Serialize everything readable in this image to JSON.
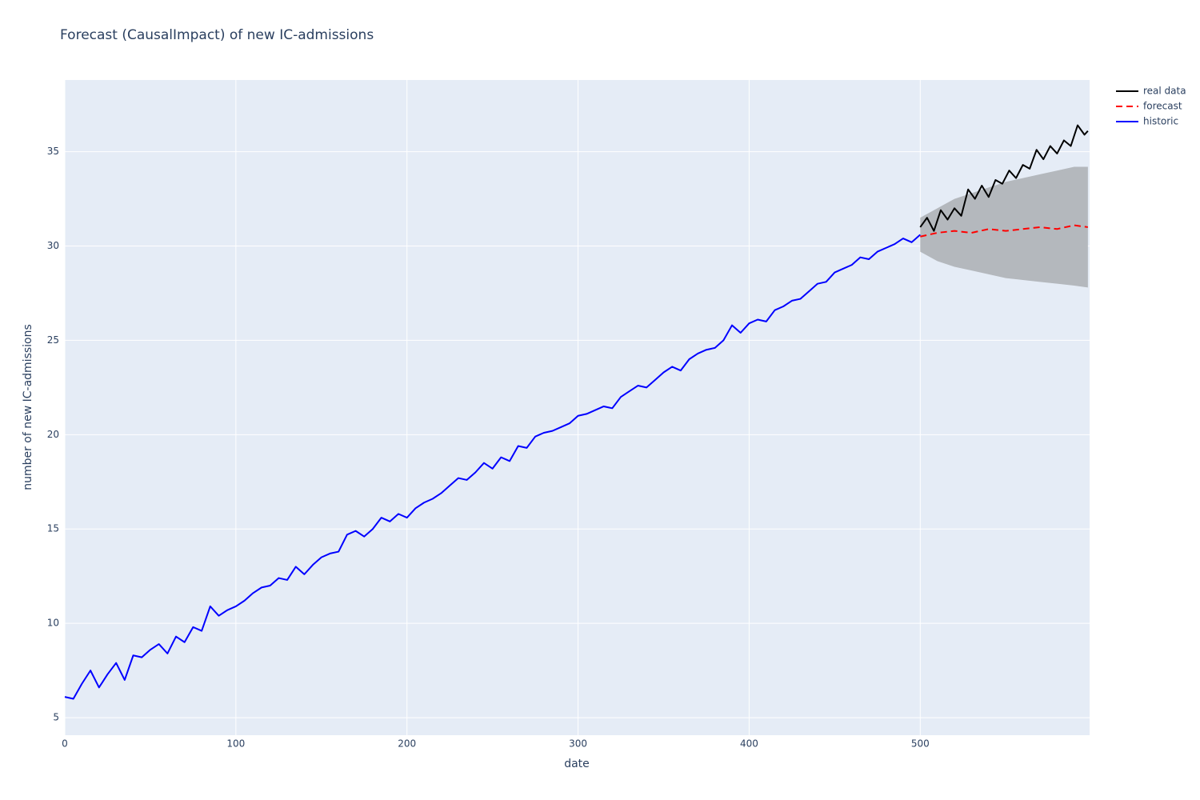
{
  "chart_data": {
    "type": "line",
    "title": "Forecast (CausalImpact) of new IC-admissions",
    "x_label": "date",
    "y_label": "number of new IC-admissions",
    "xlim": [
      0,
      599
    ],
    "ylim": [
      4.07,
      38.8
    ],
    "xticks": [
      0,
      100,
      200,
      300,
      400,
      500
    ],
    "yticks": [
      5,
      10,
      15,
      20,
      25,
      30,
      35
    ],
    "grid": true,
    "series": [
      {
        "name": "real data",
        "color": "#000000",
        "dash": "solid",
        "x": [
          500,
          504,
          508,
          512,
          516,
          520,
          524,
          528,
          532,
          536,
          540,
          544,
          548,
          552,
          556,
          560,
          564,
          568,
          572,
          576,
          580,
          584,
          588,
          592,
          596,
          598
        ],
        "values": [
          31.0,
          31.5,
          30.8,
          31.9,
          31.4,
          32.0,
          31.6,
          33.0,
          32.5,
          33.2,
          32.6,
          33.5,
          33.3,
          34.0,
          33.6,
          34.3,
          34.1,
          35.1,
          34.6,
          35.3,
          34.9,
          35.6,
          35.3,
          36.4,
          35.9,
          36.1
        ]
      },
      {
        "name": "forecast",
        "color": "#ff0000",
        "dash": "dash",
        "band_color": "#b4b8bd",
        "x": [
          500,
          510,
          520,
          530,
          540,
          550,
          560,
          570,
          580,
          590,
          598
        ],
        "values": [
          30.5,
          30.7,
          30.8,
          30.7,
          30.9,
          30.8,
          30.9,
          31.0,
          30.9,
          31.1,
          31.0
        ],
        "lower": [
          29.7,
          29.2,
          28.9,
          28.7,
          28.5,
          28.3,
          28.2,
          28.1,
          28.0,
          27.9,
          27.8
        ],
        "upper": [
          31.5,
          32.0,
          32.5,
          32.8,
          33.1,
          33.4,
          33.6,
          33.8,
          34.0,
          34.2,
          34.2
        ]
      },
      {
        "name": "historic",
        "color": "#0000ff",
        "dash": "solid",
        "x": [
          0,
          5,
          10,
          15,
          20,
          25,
          30,
          35,
          40,
          45,
          50,
          55,
          60,
          65,
          70,
          75,
          80,
          85,
          90,
          95,
          100,
          105,
          110,
          115,
          120,
          125,
          130,
          135,
          140,
          145,
          150,
          155,
          160,
          165,
          170,
          175,
          180,
          185,
          190,
          195,
          200,
          205,
          210,
          215,
          220,
          225,
          230,
          235,
          240,
          245,
          250,
          255,
          260,
          265,
          270,
          275,
          280,
          285,
          290,
          295,
          300,
          305,
          310,
          315,
          320,
          325,
          330,
          335,
          340,
          345,
          350,
          355,
          360,
          365,
          370,
          375,
          380,
          385,
          390,
          395,
          400,
          405,
          410,
          415,
          420,
          425,
          430,
          435,
          440,
          445,
          450,
          455,
          460,
          465,
          470,
          475,
          480,
          485,
          490,
          495,
          500
        ],
        "values": [
          6.1,
          6.0,
          6.8,
          7.5,
          6.6,
          7.3,
          7.9,
          7.0,
          8.3,
          8.2,
          8.6,
          8.9,
          8.4,
          9.3,
          9.0,
          9.8,
          9.6,
          10.9,
          10.4,
          10.7,
          10.9,
          11.2,
          11.6,
          11.9,
          12.0,
          12.4,
          12.3,
          13.0,
          12.6,
          13.1,
          13.5,
          13.7,
          13.8,
          14.7,
          14.9,
          14.6,
          15.0,
          15.6,
          15.4,
          15.8,
          15.6,
          16.1,
          16.4,
          16.6,
          16.9,
          17.3,
          17.7,
          17.6,
          18.0,
          18.5,
          18.2,
          18.8,
          18.6,
          19.4,
          19.3,
          19.9,
          20.1,
          20.2,
          20.4,
          20.6,
          21.0,
          21.1,
          21.3,
          21.5,
          21.4,
          22.0,
          22.3,
          22.6,
          22.5,
          22.9,
          23.3,
          23.6,
          23.4,
          24.0,
          24.3,
          24.5,
          24.6,
          25.0,
          25.8,
          25.4,
          25.9,
          26.1,
          26.0,
          26.6,
          26.8,
          27.1,
          27.2,
          27.6,
          28.0,
          28.1,
          28.6,
          28.8,
          29.0,
          29.4,
          29.3,
          29.7,
          29.9,
          30.1,
          30.4,
          30.2,
          30.6
        ]
      }
    ]
  }
}
